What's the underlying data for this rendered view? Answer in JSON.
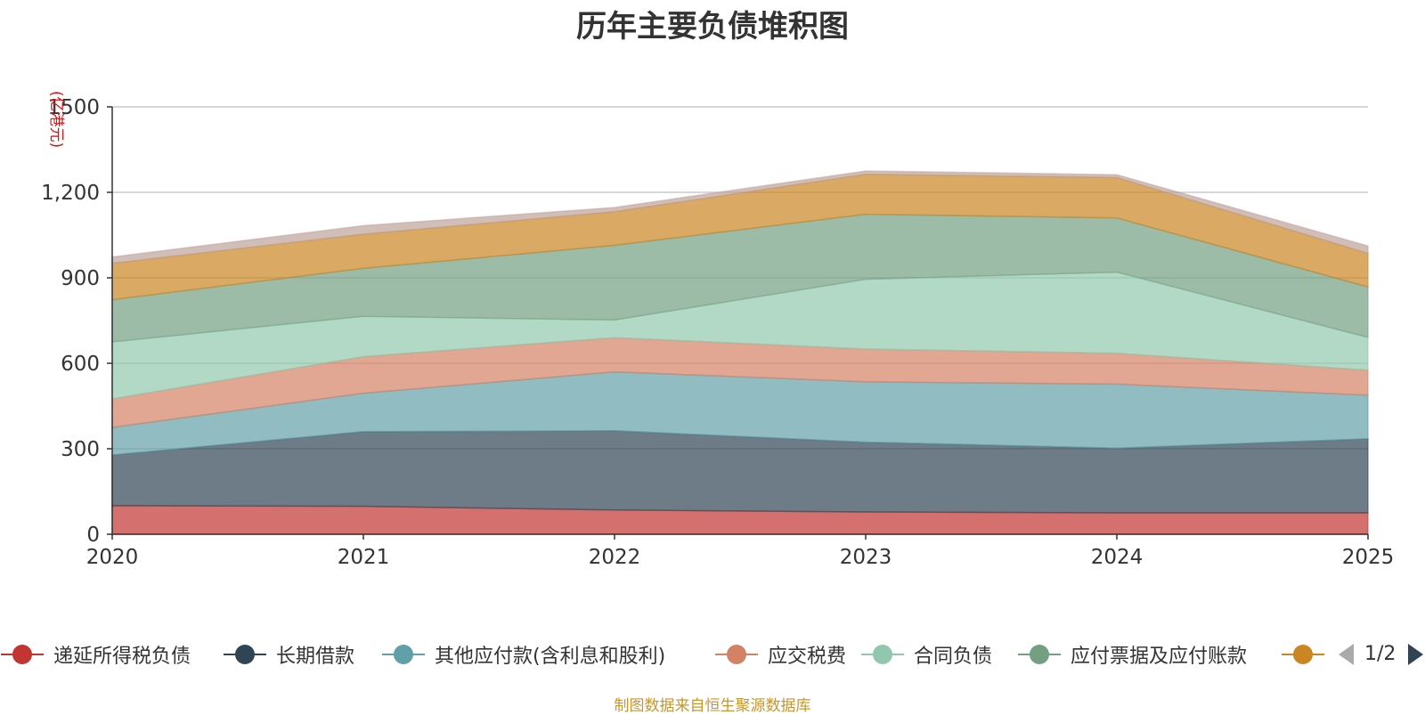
{
  "title": "历年主要负债堆积图",
  "source_note": "制图数据来自恒生聚源数据库",
  "colors": {
    "title": "#333333",
    "source": "#c8962a",
    "unit": "#e01010",
    "grid": "#cccccc",
    "axis": "#333333"
  },
  "legend_page": "1/2",
  "chart_data": {
    "type": "area",
    "stacked": true,
    "title": "历年主要负债堆积图",
    "ylabel": "(亿港元)",
    "xlabel": "",
    "categories": [
      "2020",
      "2021",
      "2022",
      "2023",
      "2024",
      "2025"
    ],
    "ylim": [
      0,
      1500
    ],
    "yticks": [
      0,
      300,
      600,
      900,
      1200,
      1500
    ],
    "ytick_labels": [
      "0",
      "300",
      "600",
      "900",
      "1,200",
      "1500"
    ],
    "grid": true,
    "legend_position": "bottom",
    "series": [
      {
        "name": "递延所得税负债",
        "color": "#c23531",
        "values": [
          100,
          98,
          85,
          78,
          75,
          75
        ]
      },
      {
        "name": "长期借款",
        "color": "#2f4554",
        "values": [
          178,
          262,
          278,
          245,
          227,
          260
        ]
      },
      {
        "name": "其他应付款(含利息和股利)",
        "color": "#61a0a8",
        "values": [
          97,
          135,
          207,
          212,
          225,
          153
        ]
      },
      {
        "name": "应交税费",
        "color": "#d48265",
        "values": [
          100,
          128,
          120,
          115,
          108,
          88
        ]
      },
      {
        "name": "合同负债",
        "color": "#91c7ae",
        "values": [
          200,
          142,
          62,
          245,
          285,
          115
        ]
      },
      {
        "name": "应付票据及应付账款",
        "color": "#749f83",
        "values": [
          148,
          168,
          262,
          228,
          190,
          177
        ]
      },
      {
        "name": "",
        "color": "#ca8622",
        "values": [
          128,
          120,
          118,
          140,
          142,
          118
        ]
      },
      {
        "name": "",
        "color": "#bda29a",
        "values": [
          22,
          30,
          15,
          12,
          10,
          26
        ]
      }
    ]
  }
}
